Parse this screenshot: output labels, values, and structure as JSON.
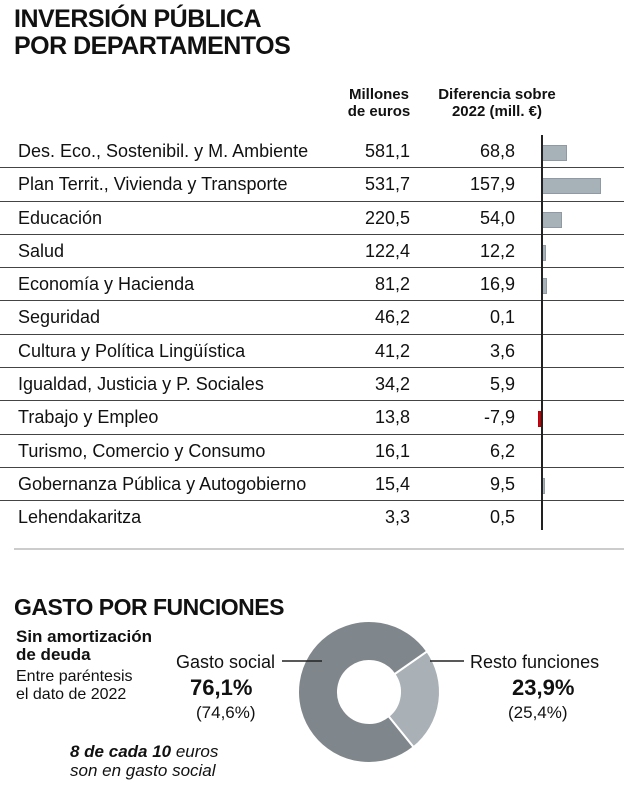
{
  "title_line1": "INVERSIÓN PÚBLICA",
  "title_line2": "POR DEPARTAMENTOS",
  "columns": {
    "millones_1": "Millones",
    "millones_2": "de euros",
    "dif_1": "Diferencia sobre",
    "dif_2": "2022 (mill. €)"
  },
  "colors": {
    "bar": "#a7b1b8",
    "negative": "#d0021b",
    "donut_main": "#80878c",
    "donut_rest": "#a9b1b6"
  },
  "chart_data": [
    {
      "type": "table",
      "title": "INVERSIÓN PÚBLICA POR DEPARTAMENTOS",
      "categories": [
        "Des. Eco., Sostenibil. y M. Ambiente",
        "Plan Territ., Vivienda y Transporte",
        "Educación",
        "Salud",
        "Economía y Hacienda",
        "Seguridad",
        "Cultura y Política Lingüística",
        "Igualdad, Justicia y P. Sociales",
        "Trabajo y Empleo",
        "Turismo, Comercio y Consumo",
        "Gobernanza Pública y Autogobierno",
        "Lehendakaritza"
      ],
      "millones": [
        "581,1",
        "531,7",
        "220,5",
        "122,4",
        "81,2",
        "46,2",
        "41,2",
        "34,2",
        "13,8",
        "16,1",
        "15,4",
        "3,3"
      ],
      "diferencia": [
        "68,8",
        "157,9",
        "54,0",
        "12,2",
        "16,9",
        "0,1",
        "3,6",
        "5,9",
        "-7,9",
        "6,2",
        "9,5",
        "0,5"
      ],
      "diferencia_values": [
        68.8,
        157.9,
        54.0,
        12.2,
        16.9,
        0.1,
        3.6,
        5.9,
        -7.9,
        6.2,
        9.5,
        0.5
      ]
    },
    {
      "type": "pie",
      "title": "GASTO POR FUNCIONES",
      "slices": [
        {
          "label": "Gasto social",
          "value": 76.1,
          "text": "76,1%",
          "prev": "(74,6%)"
        },
        {
          "label": "Resto funciones",
          "value": 23.9,
          "text": "23,9%",
          "prev": "(25,4%)"
        }
      ]
    }
  ],
  "note_bold_1": "Sin amortización",
  "note_bold_2": "de deuda",
  "note_1": "Entre paréntesis",
  "note_2": "el dato de 2022",
  "tagline_bold": "8 de cada 10",
  "tagline_rest": " euros",
  "tagline_2": "son en gasto social"
}
